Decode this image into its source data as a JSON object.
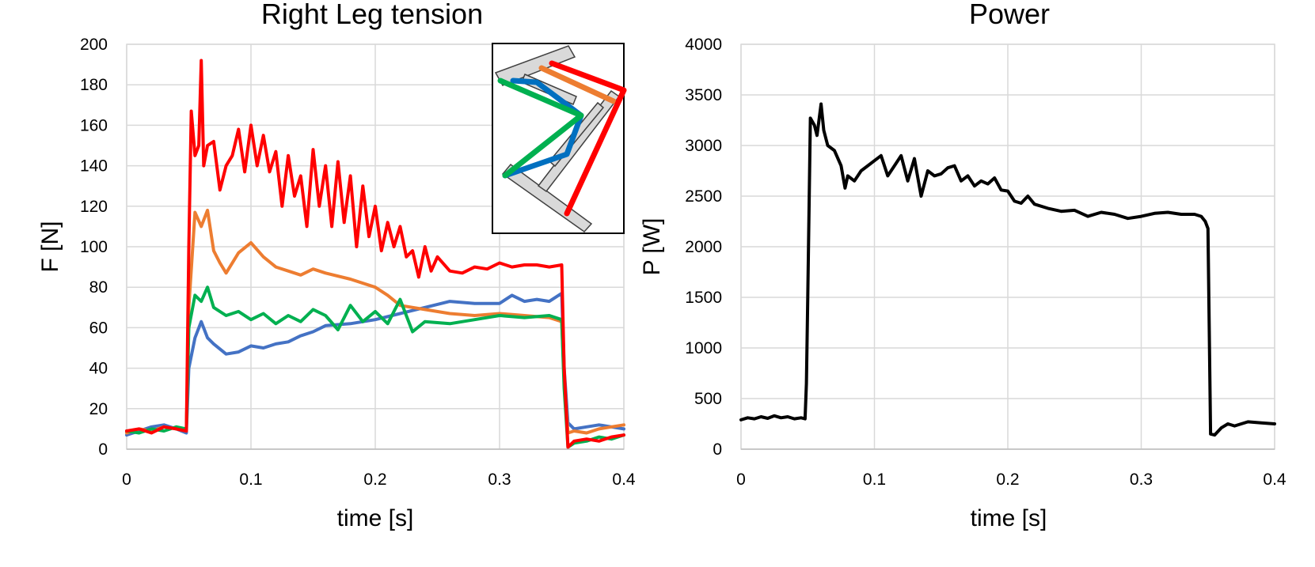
{
  "colors": {
    "blue": "#4472c4",
    "orange": "#ed7d31",
    "green": "#00b050",
    "red": "#ff0000",
    "black": "#000000",
    "inset_blue": "#0070c0"
  },
  "chart_data": [
    {
      "type": "line",
      "title": "Right Leg tension",
      "xlabel": "time [s]",
      "ylabel": "F [N]",
      "xlim": [
        0,
        0.4
      ],
      "ylim": [
        0,
        200
      ],
      "xticks": [
        "0",
        "0.1",
        "0.2",
        "0.3",
        "0.4"
      ],
      "yticks": [
        "0",
        "20",
        "40",
        "60",
        "80",
        "100",
        "120",
        "140",
        "160",
        "180",
        "200"
      ],
      "grid": true,
      "legend": "none",
      "inset": "leg-linkage-diagram (top-right)",
      "series": [
        {
          "color": "#4472c4",
          "x": [
            0,
            0.01,
            0.02,
            0.03,
            0.04,
            0.048,
            0.05,
            0.055,
            0.06,
            0.065,
            0.07,
            0.08,
            0.09,
            0.1,
            0.11,
            0.12,
            0.13,
            0.14,
            0.15,
            0.16,
            0.18,
            0.2,
            0.22,
            0.24,
            0.26,
            0.28,
            0.3,
            0.31,
            0.32,
            0.33,
            0.34,
            0.35,
            0.352,
            0.355,
            0.36,
            0.37,
            0.38,
            0.39,
            0.4
          ],
          "y": [
            7,
            9,
            11,
            12,
            10,
            8,
            40,
            55,
            63,
            55,
            52,
            47,
            48,
            51,
            50,
            52,
            53,
            56,
            58,
            61,
            62,
            64,
            67,
            70,
            73,
            72,
            72,
            76,
            73,
            74,
            73,
            77,
            40,
            13,
            10,
            11,
            12,
            11,
            10
          ]
        },
        {
          "color": "#ed7d31",
          "x": [
            0,
            0.01,
            0.02,
            0.03,
            0.04,
            0.048,
            0.05,
            0.055,
            0.06,
            0.065,
            0.07,
            0.075,
            0.08,
            0.09,
            0.1,
            0.11,
            0.12,
            0.13,
            0.14,
            0.15,
            0.16,
            0.18,
            0.2,
            0.21,
            0.22,
            0.24,
            0.26,
            0.28,
            0.3,
            0.32,
            0.34,
            0.35,
            0.352,
            0.355,
            0.36,
            0.37,
            0.38,
            0.39,
            0.4
          ],
          "y": [
            8,
            10,
            9,
            11,
            10,
            9,
            70,
            117,
            110,
            118,
            98,
            92,
            87,
            97,
            102,
            95,
            90,
            88,
            86,
            89,
            87,
            84,
            80,
            76,
            71,
            69,
            67,
            66,
            67,
            66,
            65,
            63,
            35,
            8,
            9,
            8,
            10,
            11,
            12
          ]
        },
        {
          "color": "#00b050",
          "x": [
            0,
            0.01,
            0.02,
            0.03,
            0.04,
            0.048,
            0.05,
            0.055,
            0.06,
            0.065,
            0.07,
            0.08,
            0.09,
            0.1,
            0.11,
            0.12,
            0.13,
            0.14,
            0.15,
            0.16,
            0.17,
            0.18,
            0.19,
            0.2,
            0.21,
            0.22,
            0.23,
            0.24,
            0.26,
            0.28,
            0.3,
            0.32,
            0.34,
            0.35,
            0.352,
            0.355,
            0.36,
            0.37,
            0.38,
            0.39,
            0.4
          ],
          "y": [
            9,
            8,
            10,
            9,
            11,
            10,
            60,
            76,
            73,
            80,
            70,
            66,
            68,
            64,
            67,
            62,
            66,
            63,
            69,
            66,
            59,
            71,
            63,
            68,
            62,
            74,
            58,
            63,
            62,
            64,
            66,
            65,
            66,
            64,
            30,
            1,
            3,
            4,
            6,
            5,
            7
          ]
        },
        {
          "color": "#ff0000",
          "x": [
            0,
            0.01,
            0.02,
            0.03,
            0.04,
            0.048,
            0.05,
            0.052,
            0.055,
            0.058,
            0.06,
            0.062,
            0.065,
            0.07,
            0.075,
            0.08,
            0.085,
            0.09,
            0.095,
            0.1,
            0.105,
            0.11,
            0.115,
            0.12,
            0.125,
            0.13,
            0.135,
            0.14,
            0.145,
            0.15,
            0.155,
            0.16,
            0.165,
            0.17,
            0.175,
            0.18,
            0.185,
            0.19,
            0.195,
            0.2,
            0.205,
            0.21,
            0.215,
            0.22,
            0.225,
            0.23,
            0.235,
            0.24,
            0.245,
            0.25,
            0.26,
            0.27,
            0.28,
            0.29,
            0.3,
            0.31,
            0.32,
            0.33,
            0.34,
            0.35,
            0.352,
            0.355,
            0.36,
            0.37,
            0.38,
            0.39,
            0.4
          ],
          "y": [
            9,
            10,
            8,
            11,
            10,
            9,
            100,
            167,
            145,
            150,
            192,
            140,
            150,
            152,
            128,
            140,
            145,
            158,
            137,
            160,
            140,
            155,
            137,
            147,
            120,
            145,
            125,
            135,
            110,
            148,
            120,
            140,
            110,
            142,
            112,
            135,
            100,
            130,
            105,
            120,
            98,
            112,
            100,
            110,
            95,
            98,
            85,
            100,
            88,
            95,
            88,
            87,
            90,
            89,
            92,
            90,
            91,
            91,
            90,
            91,
            40,
            1,
            4,
            5,
            4,
            6,
            7
          ]
        }
      ]
    },
    {
      "type": "line",
      "title": "Power",
      "xlabel": "time [s]",
      "ylabel": "P [W]",
      "xlim": [
        0,
        0.4
      ],
      "ylim": [
        0,
        4000
      ],
      "xticks": [
        "0",
        "0.1",
        "0.2",
        "0.3",
        "0.4"
      ],
      "yticks": [
        "0",
        "500",
        "1000",
        "1500",
        "2000",
        "2500",
        "3000",
        "3500",
        "4000"
      ],
      "grid": true,
      "legend": "none",
      "series": [
        {
          "color": "#000000",
          "x": [
            0,
            0.005,
            0.01,
            0.015,
            0.02,
            0.025,
            0.03,
            0.035,
            0.04,
            0.045,
            0.048,
            0.049,
            0.05,
            0.052,
            0.055,
            0.057,
            0.06,
            0.062,
            0.065,
            0.07,
            0.075,
            0.078,
            0.08,
            0.085,
            0.09,
            0.095,
            0.1,
            0.105,
            0.11,
            0.115,
            0.12,
            0.125,
            0.13,
            0.135,
            0.14,
            0.145,
            0.15,
            0.155,
            0.16,
            0.165,
            0.17,
            0.175,
            0.18,
            0.185,
            0.19,
            0.195,
            0.2,
            0.205,
            0.21,
            0.215,
            0.22,
            0.23,
            0.24,
            0.25,
            0.26,
            0.27,
            0.28,
            0.29,
            0.3,
            0.31,
            0.32,
            0.33,
            0.34,
            0.345,
            0.348,
            0.35,
            0.352,
            0.355,
            0.36,
            0.365,
            0.37,
            0.38,
            0.39,
            0.4
          ],
          "y": [
            290,
            310,
            300,
            320,
            305,
            330,
            310,
            320,
            300,
            310,
            300,
            650,
            1500,
            3270,
            3200,
            3100,
            3410,
            3150,
            3000,
            2950,
            2800,
            2580,
            2700,
            2650,
            2750,
            2800,
            2850,
            2900,
            2700,
            2800,
            2900,
            2650,
            2870,
            2500,
            2750,
            2700,
            2720,
            2780,
            2800,
            2650,
            2700,
            2600,
            2650,
            2620,
            2680,
            2560,
            2550,
            2450,
            2430,
            2500,
            2420,
            2380,
            2350,
            2360,
            2300,
            2340,
            2320,
            2280,
            2300,
            2330,
            2340,
            2320,
            2320,
            2300,
            2250,
            2180,
            150,
            140,
            210,
            250,
            230,
            270,
            260,
            250
          ]
        }
      ]
    }
  ]
}
